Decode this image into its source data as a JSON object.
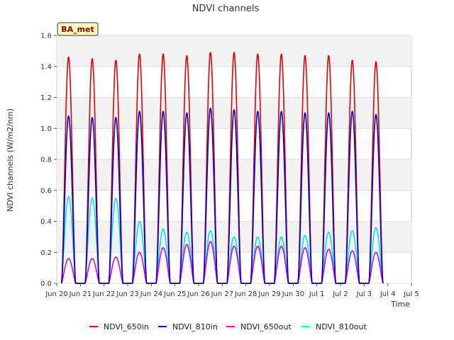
{
  "chart_data": {
    "type": "line",
    "title": "NDVI channels",
    "xlabel": "Time",
    "ylabel": "NDVI channels (W/m2/nm)",
    "badge": "BA_met",
    "ylim": [
      0,
      1.6
    ],
    "xlim": [
      0,
      15
    ],
    "y_ticks": [
      "0.0",
      "0.2",
      "0.4",
      "0.6",
      "0.8",
      "1.0",
      "1.2",
      "1.4",
      "1.6"
    ],
    "x_ticks": [
      "Jun 20",
      "Jun 21",
      "Jun 22",
      "Jun 23",
      "Jun 24",
      "Jun 25",
      "Jun 26",
      "Jun 27",
      "Jun 28",
      "Jun 29",
      "Jun 30",
      "Jul 1",
      "Jul 2",
      "Jul 3",
      "Jul 4",
      "Jul 5"
    ],
    "days": [
      "Jun 20",
      "Jun 21",
      "Jun 22",
      "Jun 23",
      "Jun 24",
      "Jun 25",
      "Jun 26",
      "Jun 27",
      "Jun 28",
      "Jun 29",
      "Jun 30",
      "Jul 1",
      "Jul 2",
      "Jul 3"
    ],
    "series": [
      {
        "name": "NDVI_650in",
        "color": "#e00000",
        "daily_peaks": [
          1.46,
          1.45,
          1.44,
          1.48,
          1.48,
          1.47,
          1.49,
          1.49,
          1.48,
          1.48,
          1.47,
          1.47,
          1.44,
          1.43
        ]
      },
      {
        "name": "NDVI_810in",
        "color": "#0000cc",
        "daily_peaks": [
          1.08,
          1.07,
          1.07,
          1.11,
          1.11,
          1.1,
          1.13,
          1.12,
          1.11,
          1.11,
          1.1,
          1.1,
          1.11,
          1.09
        ]
      },
      {
        "name": "NDVI_650out",
        "color": "#dd00dd",
        "daily_peaks": [
          0.16,
          0.16,
          0.17,
          0.2,
          0.23,
          0.25,
          0.27,
          0.24,
          0.24,
          0.24,
          0.23,
          0.22,
          0.21,
          0.2
        ]
      },
      {
        "name": "NDVI_810out",
        "color": "#00e5ee",
        "daily_peaks": [
          0.56,
          0.55,
          0.55,
          0.4,
          0.35,
          0.33,
          0.34,
          0.3,
          0.3,
          0.3,
          0.31,
          0.33,
          0.34,
          0.36
        ]
      }
    ]
  }
}
